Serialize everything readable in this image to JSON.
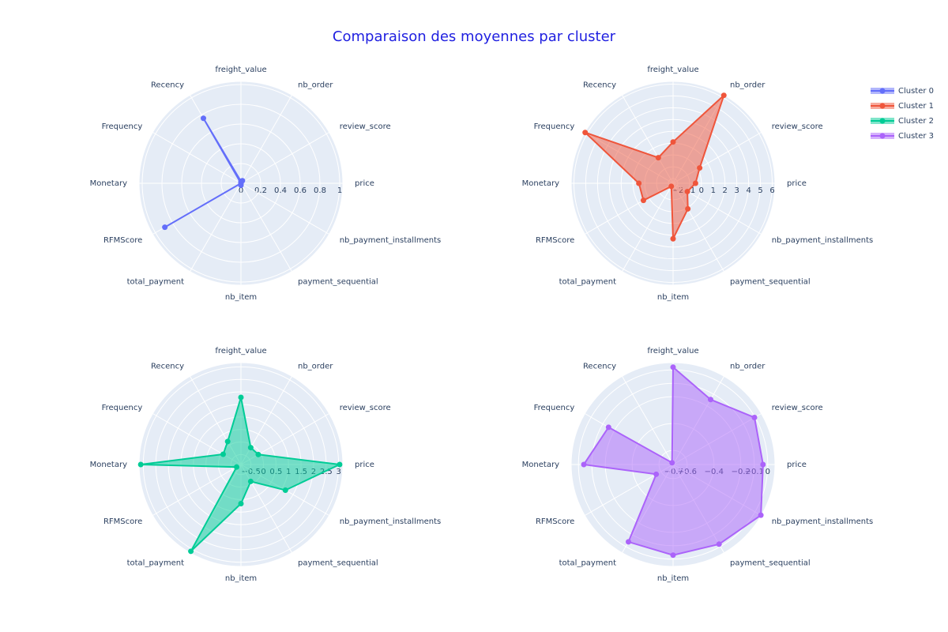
{
  "title": "Comparaison des moyennes par cluster",
  "title_color": "#1f1fe0",
  "chart_data": [
    {
      "type": "radar",
      "fill": "none",
      "categories": [
        "price",
        "review_score",
        "nb_order",
        "freight_value",
        "Recency",
        "Frequency",
        "Monetary",
        "RFMScore",
        "total_payment",
        "nb_item",
        "payment_sequential",
        "nb_payment_installments"
      ],
      "series": [
        {
          "name": "Cluster 0",
          "color": "#636efa",
          "values": [
            0,
            0,
            0.03,
            0.02,
            0.76,
            0,
            0,
            0.89,
            0,
            0.02,
            0,
            0
          ]
        }
      ],
      "rlim": [
        0,
        1.04
      ],
      "rticks": [
        0,
        0.2,
        0.4,
        0.6,
        0.8,
        1
      ]
    },
    {
      "type": "radar",
      "fill": "toself",
      "categories": [
        "price",
        "review_score",
        "nb_order",
        "freight_value",
        "Recency",
        "Frequency",
        "Monetary",
        "RFMScore",
        "total_payment",
        "nb_item",
        "payment_sequential",
        "nb_payment_installments"
      ],
      "series": [
        {
          "name": "Cluster 1",
          "color": "#ef553b",
          "values": [
            -0.5,
            0.2,
            6.2,
            1.1,
            0.1,
            6.2,
            0.5,
            0.5,
            -2.1,
            2.3,
            0.1,
            -1.0
          ]
        }
      ],
      "rlim": [
        -2.4,
        6.3
      ],
      "rticks": [
        {
          "value": -2,
          "label": "−2"
        },
        {
          "value": -1,
          "label": "−1"
        },
        0,
        1,
        2,
        3,
        4,
        5,
        6
      ]
    },
    {
      "type": "radar",
      "fill": "toself",
      "categories": [
        "price",
        "review_score",
        "nb_order",
        "freight_value",
        "Recency",
        "Frequency",
        "Monetary",
        "RFMScore",
        "total_payment",
        "nb_item",
        "payment_sequential",
        "nb_payment_installments"
      ],
      "series": [
        {
          "name": "Cluster 2",
          "color": "#00cc96",
          "values": [
            3.04,
            -0.1,
            -0.12,
            1.78,
            0.16,
            -0.08,
            3.1,
            -0.7,
            3.1,
            0.66,
            -0.12,
            1.15
          ]
        }
      ],
      "rlim": [
        -0.9,
        3.2
      ],
      "rticks": [
        {
          "value": -0.5,
          "label": "−0.5"
        },
        0,
        0.5,
        1,
        1.5,
        2,
        2.5,
        3
      ]
    },
    {
      "type": "radar",
      "fill": "toself",
      "categories": [
        "price",
        "review_score",
        "nb_order",
        "freight_value",
        "Recency",
        "Frequency",
        "Monetary",
        "RFMScore",
        "total_payment",
        "nb_item",
        "payment_sequential",
        "nb_payment_installments"
      ],
      "series": [
        {
          "name": "Cluster 3",
          "color": "#ab63fa",
          "values": [
            -0.035,
            -0.005,
            -0.146,
            0.02,
            -0.69,
            -0.15,
            -0.04,
            -0.56,
            -0.04,
            -0.03,
            -0.02,
            0.05
          ]
        }
      ],
      "rlim": [
        -0.705,
        0.06
      ],
      "rticks": [
        {
          "value": -0.7,
          "label": "−0.7"
        },
        {
          "value": -0.6,
          "label": "−0.6"
        },
        {
          "value": -0.4,
          "label": "−0.4"
        },
        {
          "value": -0.2,
          "label": "−0.2"
        },
        {
          "value": -0.1,
          "label": "−0.1"
        },
        0
      ]
    }
  ]
}
